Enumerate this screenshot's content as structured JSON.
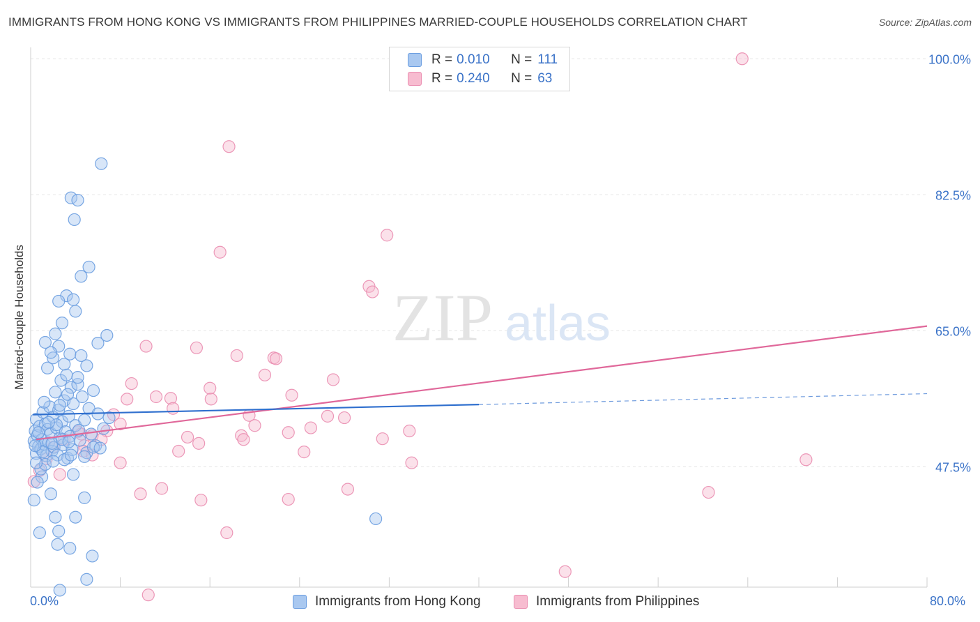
{
  "title": "IMMIGRANTS FROM HONG KONG VS IMMIGRANTS FROM PHILIPPINES MARRIED-COUPLE HOUSEHOLDS CORRELATION CHART",
  "source": "Source: ZipAtlas.com",
  "watermark": {
    "zip": "ZIP",
    "atlas": "atlas"
  },
  "legend_top": [
    {
      "r_label": "R =",
      "r_value": "0.010",
      "n_label": "N =",
      "n_value": "111"
    },
    {
      "r_label": "R =",
      "r_value": "0.240",
      "n_label": "N =",
      "n_value": "63"
    }
  ],
  "legend_bottom": [
    "Immigrants from Hong Kong",
    "Immigrants from Philippines"
  ],
  "colors": {
    "hk_fill": "#a9c8f0",
    "hk_stroke": "#6a9de0",
    "hk_line": "#2f6fce",
    "ph_fill": "#f7bcd0",
    "ph_stroke": "#ea8db0",
    "ph_line": "#e0689a",
    "tick_text": "#3b73c8",
    "grid": "#e6e6e6"
  },
  "chart_data": {
    "type": "scatter",
    "title": "IMMIGRANTS FROM HONG KONG VS IMMIGRANTS FROM PHILIPPINES MARRIED-COUPLE HOUSEHOLDS CORRELATION CHART",
    "xlabel": "",
    "ylabel": "Married-couple Households",
    "xlim": [
      0,
      80
    ],
    "ylim": [
      32,
      102
    ],
    "x_tick_labels": [
      "0.0%",
      "80.0%"
    ],
    "y_ticks": [
      47.5,
      65.0,
      82.5,
      100.0
    ],
    "y_tick_labels": [
      "47.5%",
      "65.0%",
      "82.5%",
      "100.0%"
    ],
    "grid": true,
    "legend_position": "top-center",
    "series": [
      {
        "name": "Immigrants from Hong Kong",
        "r": 0.01,
        "n": 111,
        "trend": {
          "x0": 0.2,
          "y0": 54.2,
          "x1": 40,
          "y1": 55.5,
          "x_dash_end": 80,
          "y_dash_end": 56.9
        },
        "points": [
          [
            0.3,
            50.8
          ],
          [
            0.4,
            52.1
          ],
          [
            0.5,
            49.2
          ],
          [
            0.5,
            53.6
          ],
          [
            0.6,
            51.5
          ],
          [
            0.7,
            50.1
          ],
          [
            0.8,
            52.7
          ],
          [
            0.9,
            49.8
          ],
          [
            1.0,
            51.0
          ],
          [
            1.1,
            54.5
          ],
          [
            1.2,
            50.4
          ],
          [
            1.3,
            53.0
          ],
          [
            1.4,
            48.9
          ],
          [
            1.5,
            52.3
          ],
          [
            1.6,
            50.6
          ],
          [
            1.7,
            55.2
          ],
          [
            1.8,
            51.8
          ],
          [
            1.9,
            49.5
          ],
          [
            2.0,
            53.9
          ],
          [
            2.1,
            50.0
          ],
          [
            2.2,
            57.1
          ],
          [
            2.3,
            52.5
          ],
          [
            2.4,
            49.0
          ],
          [
            2.5,
            54.8
          ],
          [
            2.6,
            51.2
          ],
          [
            2.7,
            58.6
          ],
          [
            2.8,
            53.3
          ],
          [
            2.9,
            50.3
          ],
          [
            3.0,
            56.0
          ],
          [
            3.1,
            52.0
          ],
          [
            3.2,
            59.3
          ],
          [
            3.3,
            48.6
          ],
          [
            3.4,
            54.0
          ],
          [
            3.5,
            51.4
          ],
          [
            3.6,
            57.7
          ],
          [
            3.7,
            49.7
          ],
          [
            3.8,
            55.6
          ],
          [
            4.0,
            52.8
          ],
          [
            4.2,
            58.1
          ],
          [
            4.4,
            50.9
          ],
          [
            4.6,
            56.5
          ],
          [
            4.8,
            53.5
          ],
          [
            5.0,
            49.3
          ],
          [
            5.2,
            55.0
          ],
          [
            5.4,
            51.7
          ],
          [
            5.6,
            57.3
          ],
          [
            5.8,
            50.2
          ],
          [
            6.0,
            54.3
          ],
          [
            6.5,
            52.4
          ],
          [
            7.0,
            53.8
          ],
          [
            1.5,
            60.2
          ],
          [
            2.0,
            61.5
          ],
          [
            2.5,
            63.0
          ],
          [
            1.8,
            62.2
          ],
          [
            3.0,
            60.7
          ],
          [
            2.2,
            64.6
          ],
          [
            1.3,
            63.5
          ],
          [
            3.5,
            62.0
          ],
          [
            4.5,
            61.8
          ],
          [
            2.8,
            66.0
          ],
          [
            3.2,
            69.5
          ],
          [
            4.0,
            67.5
          ],
          [
            2.5,
            68.8
          ],
          [
            3.8,
            69.0
          ],
          [
            4.5,
            72.0
          ],
          [
            5.2,
            73.2
          ],
          [
            6.8,
            64.4
          ],
          [
            5.0,
            60.5
          ],
          [
            4.2,
            59.0
          ],
          [
            6.0,
            63.4
          ],
          [
            3.6,
            82.1
          ],
          [
            4.2,
            81.8
          ],
          [
            3.9,
            79.3
          ],
          [
            6.3,
            86.5
          ],
          [
            1.0,
            46.2
          ],
          [
            0.6,
            45.5
          ],
          [
            1.8,
            44.0
          ],
          [
            0.3,
            43.2
          ],
          [
            2.2,
            41.0
          ],
          [
            4.0,
            41.0
          ],
          [
            4.8,
            43.5
          ],
          [
            0.8,
            39.0
          ],
          [
            2.5,
            39.2
          ],
          [
            2.4,
            37.5
          ],
          [
            3.5,
            37.0
          ],
          [
            5.5,
            36.0
          ],
          [
            5.0,
            33.0
          ],
          [
            2.6,
            31.6
          ],
          [
            3.8,
            46.5
          ],
          [
            0.9,
            47.2
          ],
          [
            1.3,
            47.8
          ],
          [
            2.0,
            48.2
          ],
          [
            3.0,
            48.4
          ],
          [
            3.6,
            49.0
          ],
          [
            4.8,
            48.8
          ],
          [
            1.2,
            55.8
          ],
          [
            2.6,
            55.4
          ],
          [
            3.3,
            56.8
          ],
          [
            0.7,
            51.9
          ],
          [
            1.9,
            50.5
          ],
          [
            2.3,
            52.9
          ],
          [
            1.1,
            49.4
          ],
          [
            0.4,
            50.2
          ],
          [
            1.6,
            53.2
          ],
          [
            2.8,
            51.0
          ],
          [
            3.4,
            50.7
          ],
          [
            4.3,
            52.2
          ],
          [
            5.6,
            50.0
          ],
          [
            6.2,
            49.9
          ],
          [
            30.8,
            40.8
          ],
          [
            0.5,
            48.0
          ]
        ]
      },
      {
        "name": "Immigrants from Philippines",
        "r": 0.24,
        "n": 63,
        "trend": {
          "x0": 0.5,
          "y0": 51.0,
          "x1": 80,
          "y1": 65.6
        },
        "points": [
          [
            63.5,
            100.0
          ],
          [
            17.7,
            88.7
          ],
          [
            31.8,
            77.3
          ],
          [
            16.9,
            75.1
          ],
          [
            30.2,
            70.7
          ],
          [
            30.5,
            70.0
          ],
          [
            10.3,
            63.0
          ],
          [
            14.8,
            62.8
          ],
          [
            18.4,
            61.8
          ],
          [
            21.7,
            61.5
          ],
          [
            21.9,
            61.4
          ],
          [
            20.9,
            59.3
          ],
          [
            27.0,
            58.7
          ],
          [
            9.0,
            58.2
          ],
          [
            16.0,
            57.6
          ],
          [
            11.2,
            56.5
          ],
          [
            12.5,
            56.3
          ],
          [
            8.6,
            56.2
          ],
          [
            16.1,
            56.2
          ],
          [
            23.3,
            56.7
          ],
          [
            12.7,
            55.0
          ],
          [
            7.4,
            54.2
          ],
          [
            19.5,
            54.1
          ],
          [
            26.5,
            54.0
          ],
          [
            28.0,
            53.8
          ],
          [
            8.0,
            53.0
          ],
          [
            20.0,
            52.8
          ],
          [
            25.0,
            52.5
          ],
          [
            33.8,
            52.1
          ],
          [
            6.8,
            52.1
          ],
          [
            4.2,
            52.0
          ],
          [
            5.5,
            51.5
          ],
          [
            3.0,
            51.0
          ],
          [
            4.5,
            51.7
          ],
          [
            14.0,
            51.3
          ],
          [
            18.8,
            51.5
          ],
          [
            23.0,
            51.9
          ],
          [
            31.4,
            51.1
          ],
          [
            19.0,
            51.0
          ],
          [
            15.0,
            50.5
          ],
          [
            4.8,
            50.2
          ],
          [
            6.3,
            51.0
          ],
          [
            13.2,
            49.5
          ],
          [
            24.4,
            49.4
          ],
          [
            4.7,
            49.5
          ],
          [
            5.5,
            49.0
          ],
          [
            8.0,
            48.0
          ],
          [
            34.0,
            48.0
          ],
          [
            69.2,
            48.4
          ],
          [
            2.6,
            46.5
          ],
          [
            0.8,
            47.0
          ],
          [
            1.4,
            48.5
          ],
          [
            0.3,
            45.6
          ],
          [
            11.7,
            44.7
          ],
          [
            9.8,
            44.0
          ],
          [
            28.3,
            44.6
          ],
          [
            15.2,
            43.2
          ],
          [
            23.0,
            43.3
          ],
          [
            60.5,
            44.2
          ],
          [
            17.5,
            39.0
          ],
          [
            47.7,
            34.0
          ],
          [
            10.5,
            31.0
          ],
          [
            2.0,
            50.0
          ]
        ]
      }
    ]
  }
}
